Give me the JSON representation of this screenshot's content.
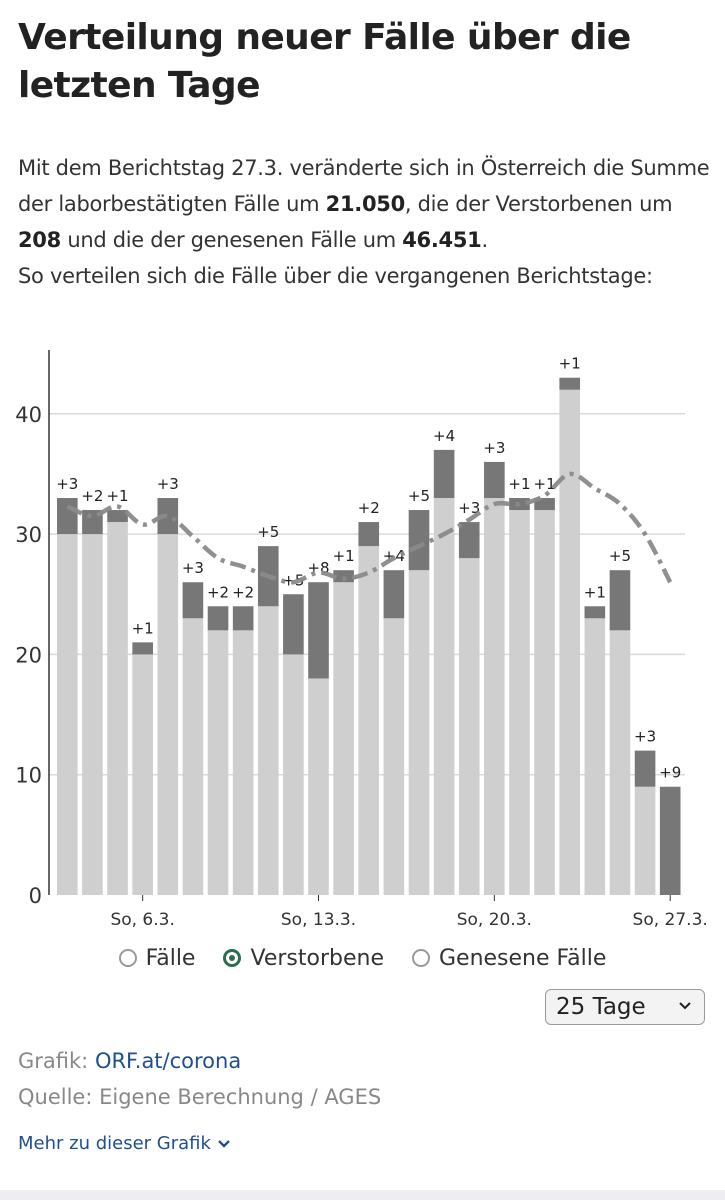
{
  "title": "Verteilung neuer Fälle über die letzten Tage",
  "intro": {
    "t1": "Mit dem Berichtstag 27.3. veränderte sich in Österreich die Summe der laborbestätigten Fälle um ",
    "v1": "21.050",
    "t2": ", die der Verstorbenen um ",
    "v2": "208",
    "t3": " und die der genesenen Fälle um ",
    "v3": "46.451",
    "t4": ".",
    "line2": "So verteilen sich die Fälle über die vergangenen Berichtstage:"
  },
  "legend": [
    {
      "label": "Fälle",
      "selected": false
    },
    {
      "label": "Verstorbene",
      "selected": true
    },
    {
      "label": "Genesene Fälle",
      "selected": false
    }
  ],
  "select": {
    "value": "25 Tage"
  },
  "source": {
    "grafik_label": "Grafik:",
    "grafik_link": "ORF.at/corona",
    "quelle": "Quelle: Eigene Berechnung / AGES"
  },
  "more_link": "Mehr zu dieser Grafik",
  "colors": {
    "base": "#cfcfcf",
    "increment": "#777777",
    "average": "#8a8a8a",
    "grid": "#d9d9d9",
    "accent": "#2e6b4f",
    "link": "#1f4f8f"
  },
  "chart_data": {
    "type": "bar",
    "stacked": true,
    "ylim": [
      0,
      45
    ],
    "yticks": [
      0,
      10,
      20,
      30,
      40
    ],
    "grid": true,
    "x_tick_labels": [
      {
        "index": 3,
        "label": "So, 6.3."
      },
      {
        "index": 10,
        "label": "So, 13.3."
      },
      {
        "index": 17,
        "label": "So, 20.3."
      },
      {
        "index": 24,
        "label": "So, 27.3."
      }
    ],
    "series": [
      {
        "values": [
          30,
          30,
          31,
          20,
          30,
          23,
          22,
          22,
          24,
          20,
          18,
          26,
          29,
          23,
          27,
          33,
          28,
          33,
          32,
          32,
          42,
          23,
          22,
          9,
          0
        ]
      },
      {
        "values": [
          3,
          2,
          1,
          1,
          3,
          3,
          2,
          2,
          5,
          5,
          8,
          1,
          2,
          4,
          5,
          4,
          3,
          3,
          1,
          1,
          1,
          1,
          5,
          3,
          9
        ]
      }
    ],
    "increment_labels": [
      "+3",
      "+2",
      "+1",
      "+1",
      "+3",
      "+3",
      "+2",
      "+2",
      "+5",
      "+5",
      "+8",
      "+1",
      "+2",
      "+4",
      "+5",
      "+4",
      "+3",
      "+3",
      "+1",
      "+1",
      "+1",
      "+1",
      "+5",
      "+3",
      "+9"
    ],
    "moving_average": [
      32.3,
      31.5,
      32.3,
      30.8,
      31.5,
      29.8,
      28.0,
      27.3,
      26.5,
      26.0,
      26.8,
      26.3,
      26.8,
      28.0,
      29.0,
      30.0,
      31.2,
      32.5,
      32.5,
      33.2,
      35.0,
      33.8,
      32.5,
      30.0,
      26.0
    ]
  }
}
